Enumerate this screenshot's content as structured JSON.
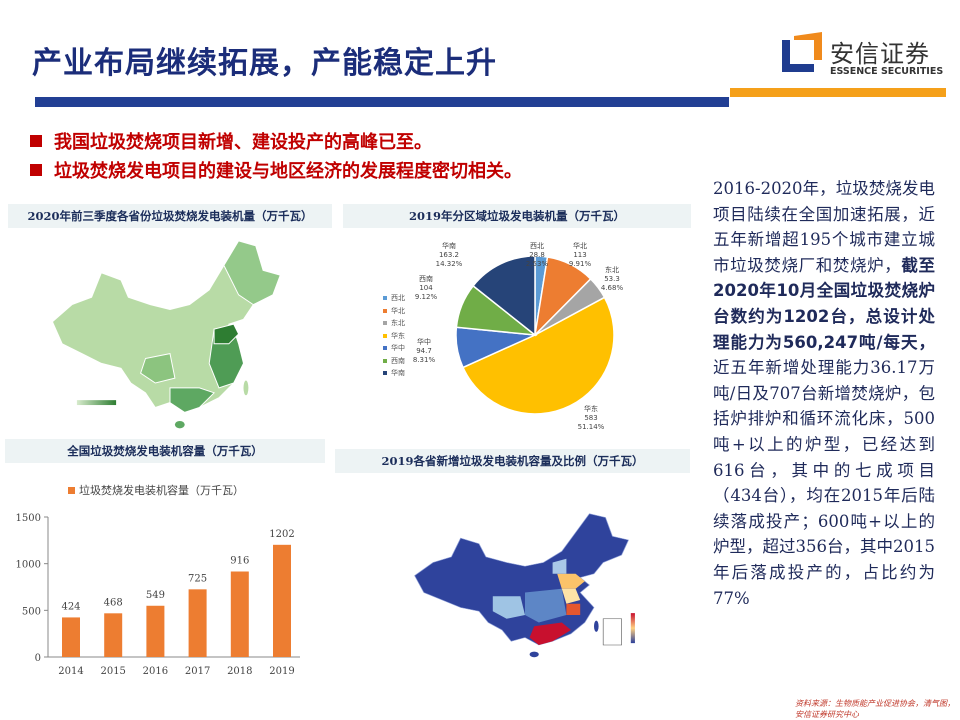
{
  "header": {
    "title": "产业布局继续拓展，产能稳定上升",
    "logo_cn": "安信证券",
    "logo_en": "ESSENCE SECURITIES",
    "colors": {
      "navy": "#223f94",
      "orange": "#f5a01a"
    }
  },
  "bullets": [
    "我国垃圾焚烧项目新增、建设投产的高峰已至。",
    "垃圾焚烧发电项目的建设与地区经济的发展程度密切相关。"
  ],
  "map1": {
    "title": "2020年前三季度各省份垃圾焚烧发电装机量（万千瓦）",
    "color_scale": [
      "#d7ebcc",
      "#2e7d32"
    ]
  },
  "map2": {
    "title": "2019各省新增垃圾发电装机容量及比例（万千瓦）",
    "color_scale": [
      "#2b3f9a",
      "#ffd080",
      "#c8102e"
    ]
  },
  "chart_data": [
    {
      "type": "bar",
      "title": "全国垃圾焚烧发电装机容量（万千瓦）",
      "legend": "垃圾焚烧发电装机容量（万千瓦）",
      "legend_position": "top",
      "categories": [
        "2014",
        "2015",
        "2016",
        "2017",
        "2018",
        "2019"
      ],
      "values": [
        424,
        468,
        549,
        725,
        916,
        1202
      ],
      "yticks": [
        "0",
        "500",
        "1000",
        "1500"
      ],
      "ylim": [
        0,
        1500
      ],
      "color": "#ed7d31",
      "grid": false
    },
    {
      "type": "pie",
      "title": "2019年分区域垃圾发电装机量（万千瓦）",
      "legend_position": "left",
      "slices": [
        {
          "name": "西北",
          "value": 28.8,
          "pct": "2.53%",
          "color": "#5b9bd5"
        },
        {
          "name": "华北",
          "value": 113,
          "pct": "9.91%",
          "color": "#ed7d31"
        },
        {
          "name": "东北",
          "value": 53.3,
          "pct": "4.68%",
          "color": "#a5a5a5"
        },
        {
          "name": "华东",
          "value": 583,
          "pct": "51.14%",
          "color": "#ffc000"
        },
        {
          "name": "华中",
          "value": 94.7,
          "pct": "8.31%",
          "color": "#4472c4"
        },
        {
          "name": "西南",
          "value": 104,
          "pct": "9.12%",
          "color": "#70ad47"
        },
        {
          "name": "华南",
          "value": 163.2,
          "pct": "14.32%",
          "color": "#264478"
        }
      ]
    }
  ],
  "paragraph": {
    "p1": "2016-2020年，垃圾焚烧发电项目陆续在全国加速拓展，近五年新增超195个城市建立城市垃圾焚烧厂和焚烧炉，",
    "bold": "截至2020年10月全国垃圾焚烧炉台数约为1202台，总设计处理能力为560,247吨/每天，",
    "p2": "近五年新增处理能力36.17万吨/日及707台新增焚烧炉，包括炉排炉和循环流化床，500吨+以上的炉型，已经达到616台，其中的七成项目（434台），均在2015年后陆续落成投产；600吨+以上的炉型，超过356台，其中2015年后落成投产的，占比约为77%"
  },
  "source": "资料来源：生物质能产业促进协会，清气图，安信证券研究中心"
}
